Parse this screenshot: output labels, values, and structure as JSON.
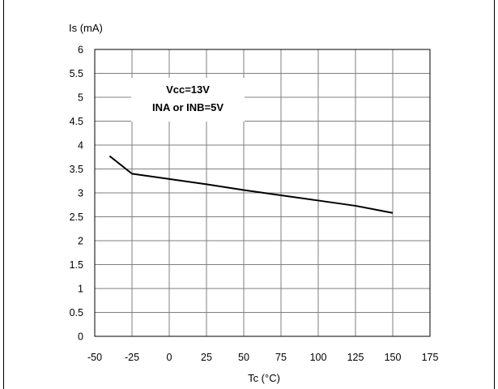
{
  "chart_data": {
    "type": "line",
    "title": "",
    "xlabel": "Tc (°C)",
    "ylabel": "Is (mA)",
    "xlim": [
      -50,
      175
    ],
    "ylim": [
      0,
      6
    ],
    "x_ticks": [
      "-50",
      "-25",
      "0",
      "25",
      "50",
      "75",
      "100",
      "125",
      "150",
      "175"
    ],
    "y_ticks": [
      "0",
      "0.5",
      "1",
      "1.5",
      "2",
      "2.5",
      "3",
      "3.5",
      "4",
      "4.5",
      "5",
      "5.5",
      "6"
    ],
    "grid": true,
    "annotation": [
      "Vcc=13V",
      "INA or INB=5V"
    ],
    "series": [
      {
        "color": "#000000",
        "points": [
          {
            "x": -40,
            "y": 3.77
          },
          {
            "x": -25,
            "y": 3.4
          },
          {
            "x": 0,
            "y": 3.29
          },
          {
            "x": 25,
            "y": 3.18
          },
          {
            "x": 50,
            "y": 3.06
          },
          {
            "x": 75,
            "y": 2.95
          },
          {
            "x": 100,
            "y": 2.84
          },
          {
            "x": 125,
            "y": 2.73
          },
          {
            "x": 150,
            "y": 2.58
          }
        ]
      }
    ]
  }
}
